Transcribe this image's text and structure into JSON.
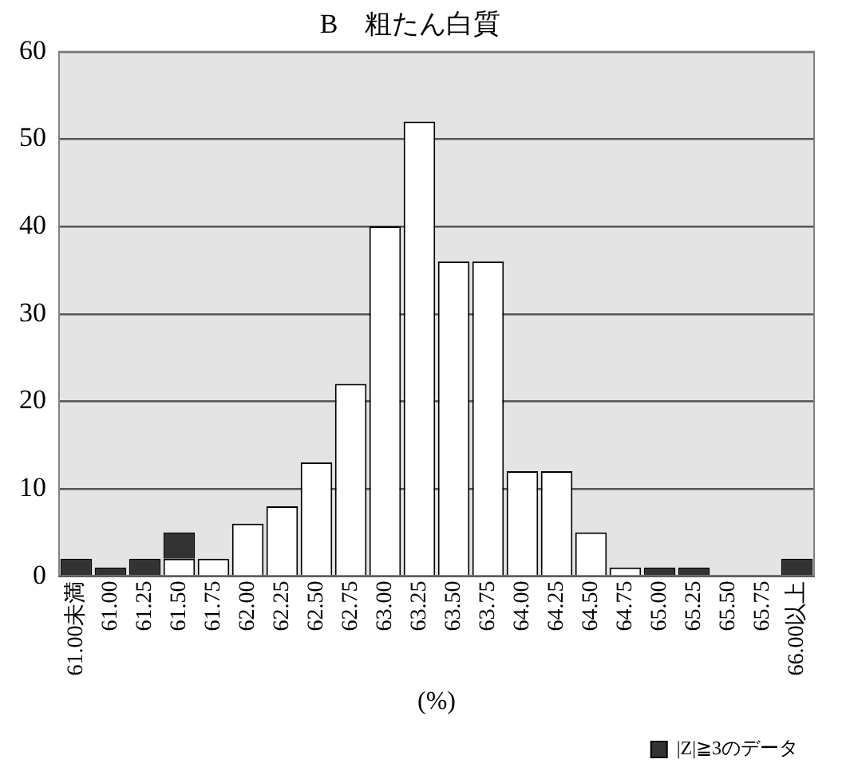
{
  "chart_data": {
    "type": "bar",
    "title": "B　粗たん白質",
    "xlabel": "(%)",
    "stacked": true,
    "categories": [
      "61.00未満",
      "61.00",
      "61.25",
      "61.50",
      "61.75",
      "62.00",
      "62.25",
      "62.50",
      "62.75",
      "63.00",
      "63.25",
      "63.50",
      "63.75",
      "64.00",
      "64.25",
      "64.50",
      "64.75",
      "65.00",
      "65.25",
      "65.50",
      "65.75",
      "66.00以上"
    ],
    "series": [
      {
        "color": "#ffffff",
        "values": [
          null,
          null,
          null,
          2,
          2,
          6,
          8,
          13,
          22,
          40,
          52,
          36,
          36,
          12,
          12,
          5,
          1,
          null,
          null,
          null,
          null,
          null
        ]
      },
      {
        "name": "|Z|≧3のデータ",
        "color": "#333333",
        "values": [
          2,
          1,
          2,
          3,
          null,
          null,
          null,
          null,
          null,
          null,
          null,
          null,
          null,
          null,
          null,
          null,
          null,
          1,
          1,
          null,
          null,
          2
        ]
      }
    ],
    "ylim": [
      0,
      60
    ],
    "yticks": [
      0,
      10,
      20,
      30,
      40,
      50,
      60
    ],
    "grid": "y",
    "legend": "bottom right"
  }
}
